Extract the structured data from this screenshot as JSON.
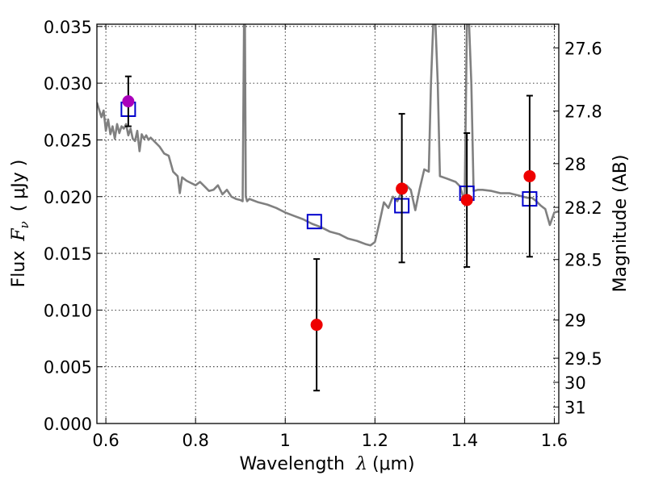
{
  "chart_data": {
    "type": "scatter",
    "xlabel_prefix": "Wavelength",
    "xlabel_symbol": "λ",
    "xlabel_unit": "(μm)",
    "ylabel_prefix": "Flux",
    "ylabel_symbol": "F",
    "ylabel_subscript": "ν",
    "ylabel_unit": "( μJy )",
    "y2label": "Magnitude (AB)",
    "xlim": [
      0.58,
      1.61
    ],
    "ylim": [
      0.0,
      0.0352
    ],
    "grid": true,
    "xticks": [
      {
        "value": 0.6,
        "label": "0.6"
      },
      {
        "value": 0.8,
        "label": "0.8"
      },
      {
        "value": 1.0,
        "label": "1"
      },
      {
        "value": 1.2,
        "label": "1.2"
      },
      {
        "value": 1.4,
        "label": "1.4"
      },
      {
        "value": 1.6,
        "label": "1.6"
      }
    ],
    "yticks": [
      {
        "value": 0.0,
        "label": "0.000"
      },
      {
        "value": 0.005,
        "label": "0.005"
      },
      {
        "value": 0.01,
        "label": "0.010"
      },
      {
        "value": 0.015,
        "label": "0.015"
      },
      {
        "value": 0.02,
        "label": "0.020"
      },
      {
        "value": 0.025,
        "label": "0.025"
      },
      {
        "value": 0.03,
        "label": "0.030"
      },
      {
        "value": 0.035,
        "label": "0.035"
      }
    ],
    "y2ticks": [
      {
        "value": 27.6,
        "label": "27.6"
      },
      {
        "value": 27.8,
        "label": "27.8"
      },
      {
        "value": 28.0,
        "label": "28"
      },
      {
        "value": 28.2,
        "label": "28.2"
      },
      {
        "value": 28.5,
        "label": "28.5"
      },
      {
        "value": 29.0,
        "label": "29"
      },
      {
        "value": 29.5,
        "label": "29.5"
      },
      {
        "value": 30.0,
        "label": "30"
      },
      {
        "value": 31.0,
        "label": "31"
      }
    ],
    "series": [
      {
        "kind": "line",
        "color": "#808080",
        "x": [
          0.58,
          0.59,
          0.595,
          0.6,
          0.605,
          0.61,
          0.615,
          0.62,
          0.625,
          0.63,
          0.635,
          0.64,
          0.645,
          0.65,
          0.655,
          0.66,
          0.665,
          0.67,
          0.675,
          0.68,
          0.685,
          0.69,
          0.695,
          0.7,
          0.71,
          0.72,
          0.73,
          0.74,
          0.75,
          0.76,
          0.765,
          0.77,
          0.78,
          0.79,
          0.8,
          0.81,
          0.82,
          0.83,
          0.84,
          0.85,
          0.86,
          0.87,
          0.88,
          0.89,
          0.9,
          0.905,
          0.908,
          0.91,
          0.912,
          0.915,
          0.92,
          0.94,
          0.96,
          0.98,
          1.0,
          1.02,
          1.04,
          1.06,
          1.08,
          1.1,
          1.12,
          1.14,
          1.16,
          1.18,
          1.19,
          1.2,
          1.21,
          1.22,
          1.23,
          1.24,
          1.25,
          1.26,
          1.27,
          1.28,
          1.29,
          1.3,
          1.31,
          1.32,
          1.325,
          1.33,
          1.335,
          1.34,
          1.345,
          1.36,
          1.38,
          1.39,
          1.4,
          1.405,
          1.41,
          1.415,
          1.42,
          1.43,
          1.44,
          1.46,
          1.48,
          1.5,
          1.52,
          1.54,
          1.55,
          1.56,
          1.57,
          1.58,
          1.59,
          1.6,
          1.61
        ],
        "y": [
          0.0283,
          0.027,
          0.0276,
          0.0258,
          0.0268,
          0.0255,
          0.0262,
          0.0251,
          0.0264,
          0.0256,
          0.0262,
          0.026,
          0.0264,
          0.0254,
          0.026,
          0.0251,
          0.0249,
          0.0258,
          0.024,
          0.0255,
          0.0251,
          0.0254,
          0.025,
          0.0252,
          0.0248,
          0.0244,
          0.0238,
          0.0236,
          0.0222,
          0.0218,
          0.0203,
          0.0217,
          0.0214,
          0.0212,
          0.021,
          0.0213,
          0.0209,
          0.0205,
          0.0206,
          0.021,
          0.0202,
          0.0206,
          0.02,
          0.0198,
          0.0197,
          0.0196,
          0.0352,
          0.0352,
          0.02,
          0.0196,
          0.0198,
          0.0195,
          0.0193,
          0.019,
          0.0186,
          0.0183,
          0.018,
          0.0176,
          0.0173,
          0.0169,
          0.0167,
          0.0163,
          0.0161,
          0.0158,
          0.0157,
          0.016,
          0.0177,
          0.0195,
          0.019,
          0.02,
          0.0196,
          0.0205,
          0.021,
          0.0206,
          0.0188,
          0.0207,
          0.0224,
          0.0222,
          0.03,
          0.0352,
          0.0352,
          0.03,
          0.0218,
          0.0216,
          0.0213,
          0.0209,
          0.0195,
          0.0352,
          0.0352,
          0.03,
          0.0205,
          0.0206,
          0.0206,
          0.0205,
          0.0203,
          0.0203,
          0.0201,
          0.0199,
          0.0199,
          0.0196,
          0.0192,
          0.0189,
          0.0175,
          0.0186,
          0.0187
        ]
      },
      {
        "kind": "points",
        "marker": "open-square",
        "color": "#0000cc",
        "points": [
          {
            "x": 0.65,
            "y": 0.0277
          },
          {
            "x": 1.065,
            "y": 0.0178
          },
          {
            "x": 1.26,
            "y": 0.0192
          },
          {
            "x": 1.405,
            "y": 0.0203
          },
          {
            "x": 1.545,
            "y": 0.0198
          }
        ]
      },
      {
        "kind": "points",
        "marker": "filled-circle",
        "color": "#ee0000",
        "points": [
          {
            "x": 0.65,
            "y": 0.0284,
            "yerr_low": 0.0262,
            "yerr_high": 0.0306,
            "fill": "#aa00bb"
          },
          {
            "x": 1.07,
            "y": 0.0087,
            "yerr_low": 0.0029,
            "yerr_high": 0.0145
          },
          {
            "x": 1.26,
            "y": 0.0207,
            "yerr_low": 0.0142,
            "yerr_high": 0.0273
          },
          {
            "x": 1.405,
            "y": 0.0197,
            "yerr_low": 0.0138,
            "yerr_high": 0.0256
          },
          {
            "x": 1.545,
            "y": 0.0218,
            "yerr_low": 0.0147,
            "yerr_high": 0.0289
          }
        ]
      }
    ]
  }
}
